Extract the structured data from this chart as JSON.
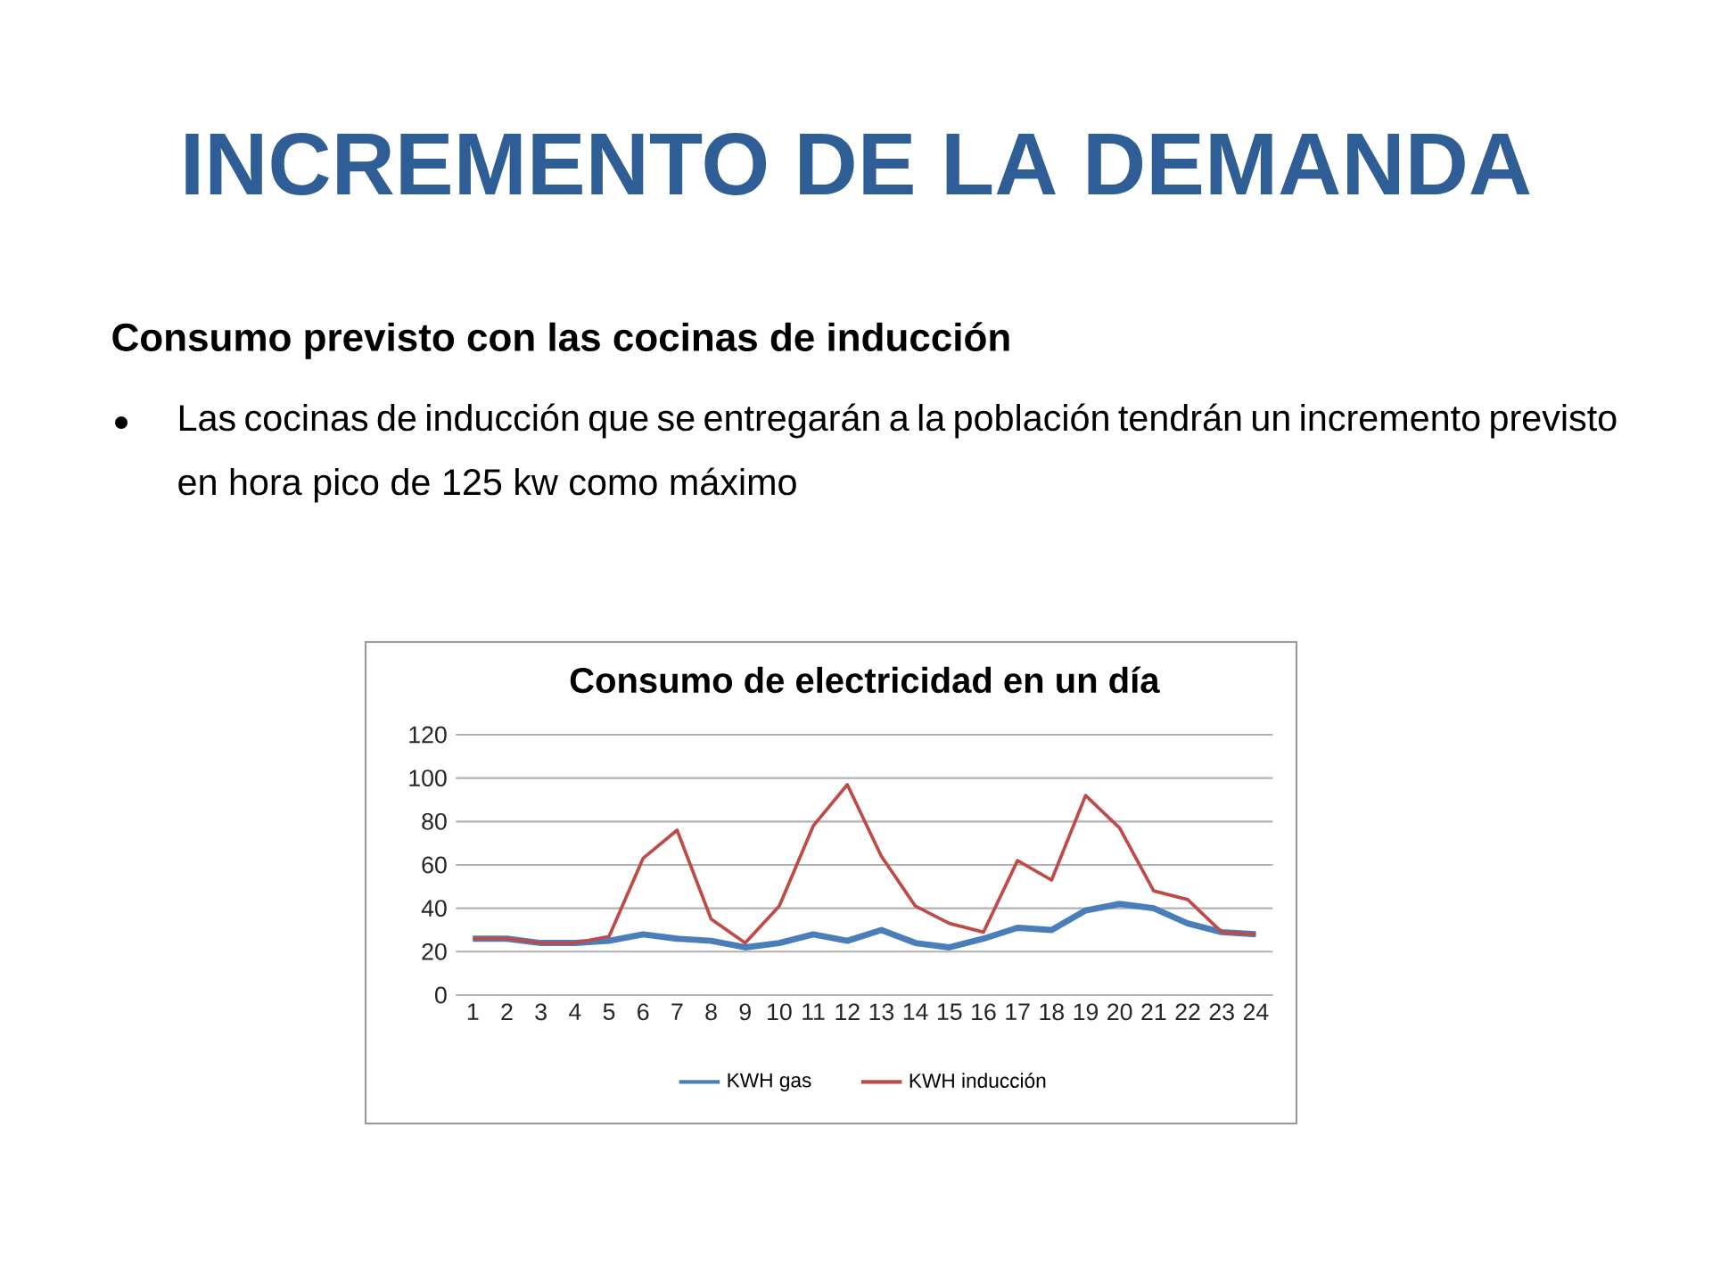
{
  "chart_data": {
    "type": "line",
    "title": "Consumo de electricidad en un día",
    "annotations": [
      "INCREMENTO DE LA DEMANDA",
      "Consumo previsto con las cocinas de inducción",
      "Las cocinas de inducción que se entregarán a la población tendrán un incremento previsto en hora pico de 125 kw como máximo"
    ],
    "categories": [
      "1",
      "2",
      "3",
      "4",
      "5",
      "6",
      "7",
      "8",
      "9",
      "10",
      "11",
      "12",
      "13",
      "14",
      "15",
      "16",
      "17",
      "18",
      "19",
      "20",
      "21",
      "22",
      "23",
      "24"
    ],
    "series": [
      {
        "name": "KWH gas",
        "color": "#4a7ebb",
        "values": [
          26,
          26,
          24,
          24,
          25,
          28,
          26,
          25,
          22,
          24,
          28,
          25,
          30,
          24,
          22,
          26,
          31,
          30,
          39,
          42,
          40,
          33,
          29,
          28
        ]
      },
      {
        "name": "KWH inducción",
        "color": "#be4b48",
        "values": [
          26,
          26,
          24,
          24,
          27,
          63,
          76,
          35,
          24,
          41,
          78,
          97,
          64,
          41,
          33,
          29,
          62,
          53,
          92,
          77,
          48,
          44,
          29,
          28
        ]
      }
    ],
    "ylim": [
      0,
      120
    ],
    "yticks": [
      0,
      20,
      40,
      60,
      80,
      100,
      120
    ],
    "grid": "y",
    "legend": "bottom"
  }
}
